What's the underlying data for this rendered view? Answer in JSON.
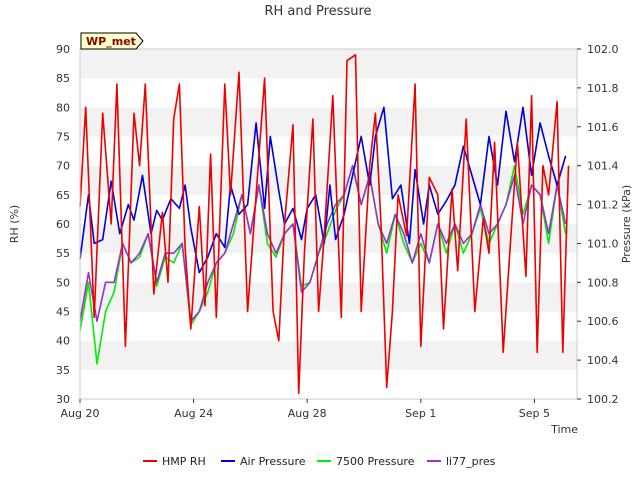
{
  "chart_data": {
    "type": "line",
    "title": "RH and Pressure",
    "xlabel": "Time",
    "ylabel_left": "RH (%)",
    "ylabel_right": "Pressure (kPa)",
    "badge": "WP_met",
    "x_ticks": [
      "Aug 20",
      "Aug 24",
      "Aug 28",
      "Sep 1",
      "Sep 5"
    ],
    "x_tick_days": [
      0,
      4,
      8,
      12,
      16
    ],
    "xlim_days": [
      0,
      17.5
    ],
    "ylim_left": [
      30,
      90
    ],
    "left_ticks": [
      30,
      35,
      40,
      45,
      50,
      55,
      60,
      65,
      70,
      75,
      80,
      85,
      90
    ],
    "ylim_right": [
      100.2,
      102.0
    ],
    "right_ticks": [
      "100.2",
      "100.4",
      "100.6",
      "100.8",
      "101.0",
      "101.2",
      "101.4",
      "101.6",
      "101.8",
      "102.0"
    ],
    "grid": "horizontal bands",
    "legend_position": "bottom",
    "series": [
      {
        "name": "HMP RH",
        "axis": "left",
        "color": "#ee0000",
        "x": [
          0,
          0.2,
          0.5,
          0.8,
          1.1,
          1.3,
          1.6,
          1.9,
          2.1,
          2.3,
          2.6,
          2.9,
          3.1,
          3.3,
          3.5,
          3.7,
          3.9,
          4.2,
          4.4,
          4.6,
          4.8,
          5.1,
          5.3,
          5.6,
          5.9,
          6.2,
          6.5,
          6.8,
          7.0,
          7.2,
          7.5,
          7.7,
          7.9,
          8.2,
          8.4,
          8.6,
          8.9,
          9.2,
          9.4,
          9.7,
          9.9,
          10.2,
          10.4,
          10.6,
          10.8,
          11.0,
          11.2,
          11.5,
          11.8,
          12.0,
          12.3,
          12.6,
          12.8,
          13.1,
          13.3,
          13.6,
          13.9,
          14.2,
          14.4,
          14.6,
          14.9,
          15.2,
          15.4,
          15.7,
          15.9,
          16.1,
          16.3,
          16.5,
          16.8,
          17.0,
          17.2
        ],
        "y": [
          63,
          80,
          44,
          79,
          60,
          84,
          39,
          79,
          70,
          84,
          48,
          62,
          50,
          78,
          84,
          56,
          42,
          63,
          46,
          72,
          44,
          84,
          65,
          86,
          45,
          65,
          85,
          45,
          40,
          60,
          77,
          31,
          55,
          78,
          45,
          58,
          82,
          44,
          88,
          89,
          45,
          70,
          79,
          60,
          32,
          45,
          65,
          58,
          84,
          39,
          68,
          65,
          42,
          66,
          52,
          78,
          45,
          61,
          55,
          74,
          38,
          60,
          74,
          51,
          82,
          38,
          70,
          65,
          81,
          38,
          70
        ]
      },
      {
        "name": "Air Pressure",
        "axis": "right",
        "color": "#0000dd",
        "x": [
          0,
          0.3,
          0.5,
          0.8,
          1.1,
          1.4,
          1.7,
          1.9,
          2.2,
          2.5,
          2.7,
          2.9,
          3.2,
          3.5,
          3.7,
          3.9,
          4.2,
          4.5,
          4.8,
          5.1,
          5.3,
          5.6,
          5.9,
          6.2,
          6.5,
          6.7,
          7.0,
          7.2,
          7.5,
          7.8,
          8.0,
          8.3,
          8.6,
          8.8,
          9.0,
          9.3,
          9.6,
          9.9,
          10.2,
          10.4,
          10.7,
          11.0,
          11.3,
          11.6,
          11.8,
          12.1,
          12.3,
          12.6,
          12.9,
          13.2,
          13.5,
          13.8,
          14.1,
          14.4,
          14.7,
          15.0,
          15.3,
          15.6,
          15.9,
          16.2,
          16.5,
          16.8,
          17.1
        ],
        "y": [
          100.92,
          101.25,
          101.0,
          101.02,
          101.32,
          101.05,
          101.2,
          101.12,
          101.35,
          101.05,
          101.17,
          101.12,
          101.23,
          101.18,
          101.3,
          101.08,
          100.85,
          100.93,
          101.05,
          100.98,
          101.3,
          101.15,
          101.2,
          101.62,
          101.18,
          101.55,
          101.27,
          101.1,
          101.18,
          101.02,
          101.18,
          101.25,
          101.0,
          101.3,
          101.02,
          101.15,
          101.35,
          101.55,
          101.3,
          101.55,
          101.7,
          101.23,
          101.3,
          101.0,
          101.38,
          101.1,
          101.3,
          101.15,
          101.22,
          101.3,
          101.5,
          101.35,
          101.2,
          101.55,
          101.3,
          101.68,
          101.42,
          101.7,
          101.35,
          101.62,
          101.45,
          101.3,
          101.45
        ]
      },
      {
        "name": "7500 Pressure",
        "axis": "right",
        "color": "#00ee00",
        "x": [
          0,
          0.3,
          0.6,
          0.9,
          1.2,
          1.5,
          1.8,
          2.1,
          2.4,
          2.7,
          3.0,
          3.3,
          3.6,
          3.9,
          4.2,
          4.5,
          4.8,
          5.1,
          5.4,
          5.7,
          6.0,
          6.3,
          6.6,
          6.9,
          7.2,
          7.5,
          7.8,
          8.1,
          8.4,
          8.7,
          9.0,
          9.3,
          9.6,
          9.9,
          10.2,
          10.5,
          10.8,
          11.1,
          11.4,
          11.7,
          12.0,
          12.3,
          12.6,
          12.9,
          13.2,
          13.5,
          13.8,
          14.1,
          14.4,
          14.7,
          15.0,
          15.3,
          15.6,
          15.9,
          16.2,
          16.5,
          16.8,
          17.1
        ],
        "y": [
          100.55,
          100.8,
          100.38,
          100.65,
          100.75,
          101.0,
          100.9,
          100.93,
          101.05,
          100.78,
          100.93,
          100.9,
          101.0,
          100.58,
          100.65,
          100.75,
          100.9,
          100.95,
          101.05,
          101.25,
          101.05,
          101.3,
          101.0,
          100.93,
          101.05,
          101.1,
          100.78,
          100.8,
          100.95,
          101.05,
          101.17,
          101.25,
          101.4,
          101.2,
          101.35,
          101.1,
          100.95,
          101.15,
          101.0,
          100.9,
          101.0,
          100.9,
          101.1,
          100.95,
          101.1,
          100.95,
          101.05,
          101.18,
          101.0,
          101.1,
          101.2,
          101.4,
          101.15,
          101.3,
          101.25,
          101.0,
          101.3,
          101.05
        ]
      },
      {
        "name": "li77_pres",
        "axis": "right",
        "color": "#9933cc",
        "x": [
          0,
          0.3,
          0.6,
          0.9,
          1.2,
          1.5,
          1.8,
          2.1,
          2.4,
          2.7,
          3.0,
          3.3,
          3.6,
          3.9,
          4.2,
          4.5,
          4.8,
          5.1,
          5.4,
          5.7,
          6.0,
          6.3,
          6.6,
          6.9,
          7.2,
          7.5,
          7.8,
          8.1,
          8.4,
          8.7,
          9.0,
          9.3,
          9.6,
          9.9,
          10.2,
          10.5,
          10.8,
          11.1,
          11.4,
          11.7,
          12.0,
          12.3,
          12.6,
          12.9,
          13.2,
          13.5,
          13.8,
          14.1,
          14.4,
          14.7,
          15.0,
          15.3,
          15.6,
          15.9,
          16.2,
          16.5,
          16.8,
          17.1
        ],
        "y": [
          100.6,
          100.85,
          100.6,
          100.8,
          100.8,
          101.0,
          100.9,
          100.95,
          101.05,
          100.8,
          100.95,
          100.95,
          101.0,
          100.6,
          100.65,
          100.8,
          100.9,
          100.95,
          101.1,
          101.25,
          101.05,
          101.3,
          101.05,
          100.95,
          101.05,
          101.1,
          100.75,
          100.8,
          100.95,
          101.1,
          101.2,
          101.25,
          101.4,
          101.2,
          101.35,
          101.1,
          101.0,
          101.15,
          101.05,
          100.9,
          101.05,
          100.9,
          101.1,
          101.0,
          101.1,
          101.0,
          101.05,
          101.2,
          101.05,
          101.1,
          101.2,
          101.35,
          101.1,
          101.3,
          101.25,
          101.05,
          101.3,
          101.1
        ]
      }
    ]
  }
}
